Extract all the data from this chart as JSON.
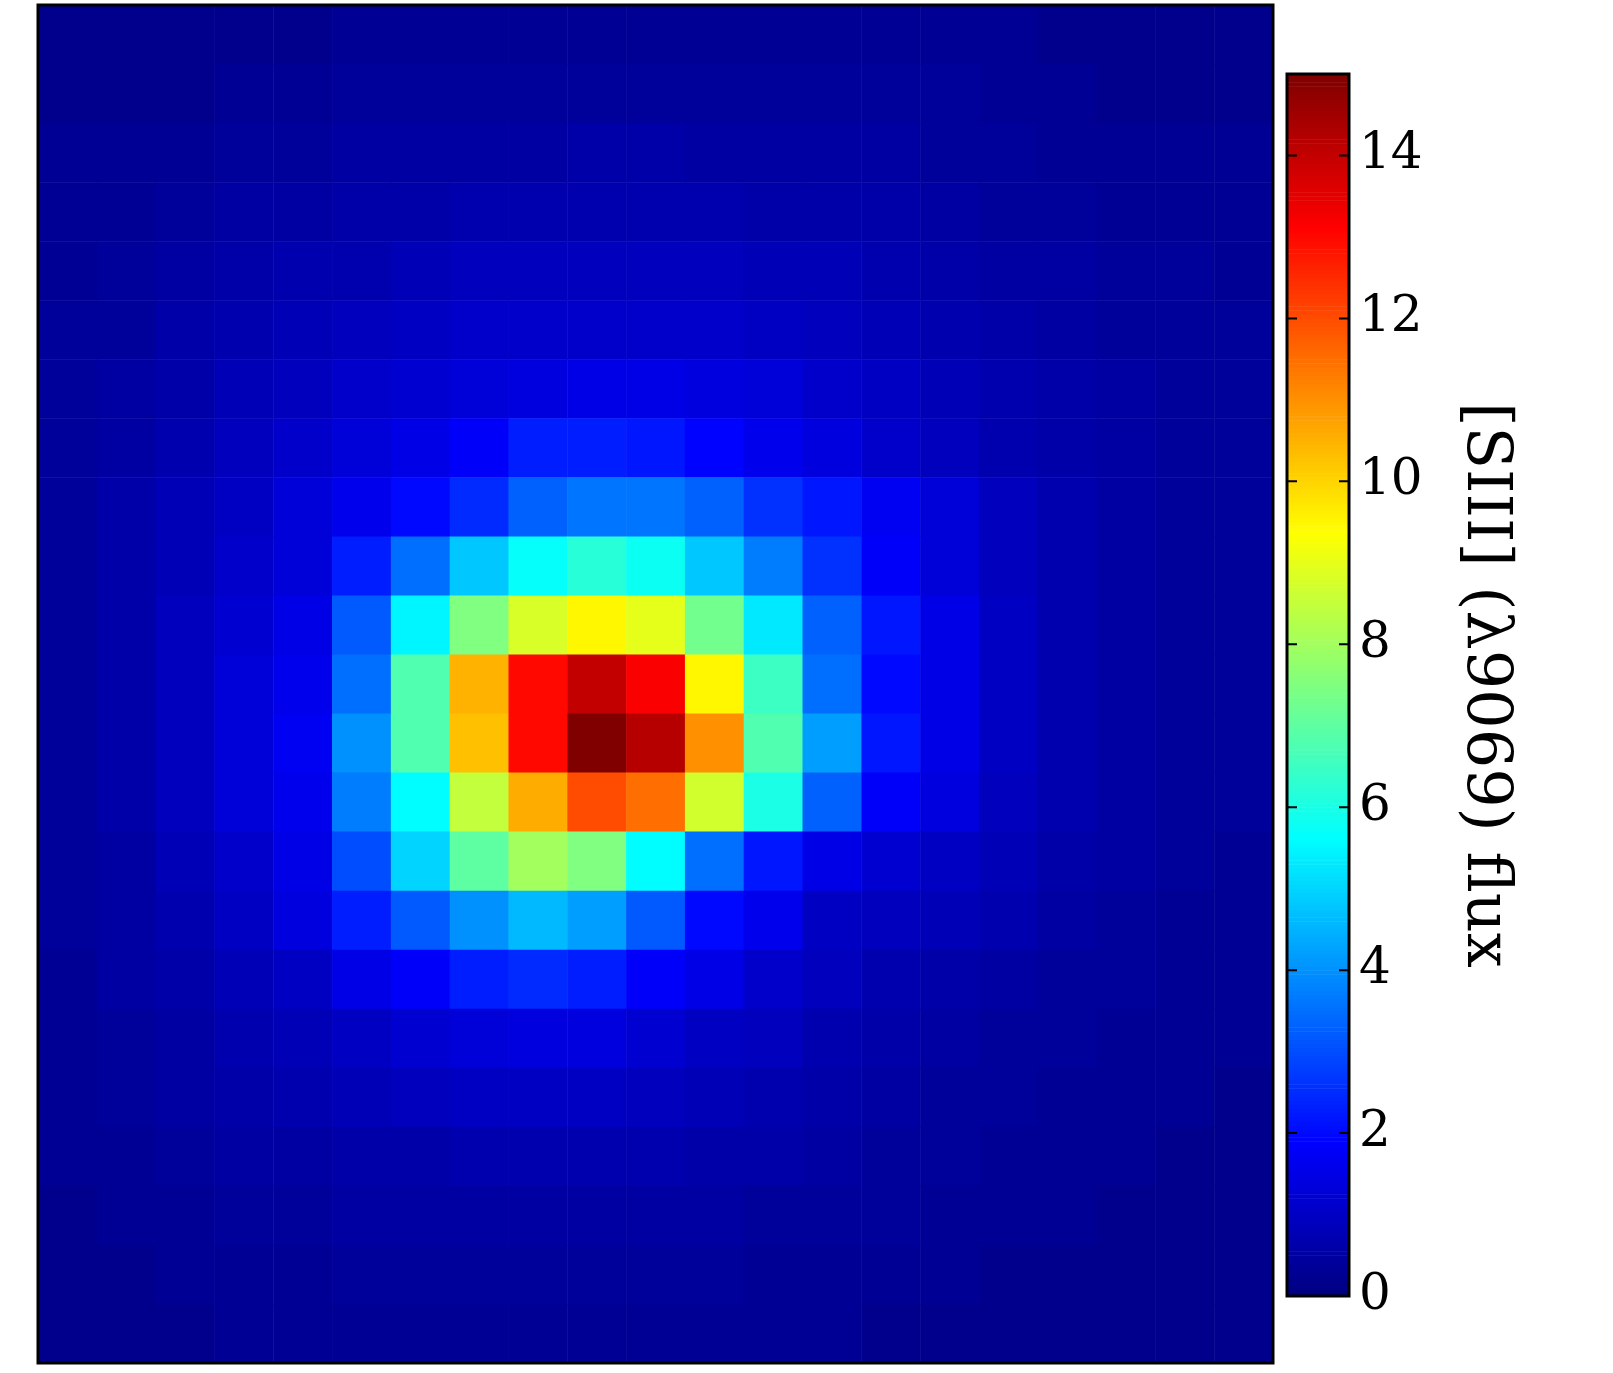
{
  "chart_data": {
    "type": "heatmap",
    "clabel": "[SIII] (λ9069) flux",
    "clim": [
      0,
      15
    ],
    "cticks": [
      0,
      2,
      4,
      6,
      8,
      10,
      12,
      14
    ],
    "tick_labels": false,
    "categories": [
      null,
      null,
      null,
      null,
      null,
      null,
      null,
      null,
      null,
      null,
      null,
      null,
      null,
      null,
      null,
      null,
      null,
      null,
      null,
      null,
      null
    ],
    "y_categories": [
      null,
      null,
      null,
      null,
      null,
      null,
      null,
      null,
      null,
      null,
      null,
      null,
      null,
      null,
      null,
      null,
      null,
      null,
      null,
      null,
      null,
      null,
      null
    ],
    "cells": [
      [
        0.2,
        0.2,
        0.2,
        0.2,
        0.2,
        0.3,
        0.3,
        0.3,
        0.3,
        0.3,
        0.3,
        0.3,
        0.3,
        0.3,
        0.3,
        0.3,
        0.3,
        0.2,
        0.2,
        0.2,
        0.2
      ],
      [
        0.2,
        0.2,
        0.2,
        0.3,
        0.3,
        0.4,
        0.4,
        0.4,
        0.4,
        0.4,
        0.4,
        0.4,
        0.4,
        0.4,
        0.4,
        0.4,
        0.3,
        0.3,
        0.2,
        0.2,
        0.2
      ],
      [
        0.3,
        0.3,
        0.3,
        0.4,
        0.4,
        0.5,
        0.5,
        0.5,
        0.5,
        0.6,
        0.6,
        0.5,
        0.5,
        0.5,
        0.5,
        0.4,
        0.4,
        0.3,
        0.3,
        0.3,
        0.3
      ],
      [
        0.3,
        0.3,
        0.4,
        0.5,
        0.5,
        0.6,
        0.6,
        0.7,
        0.7,
        0.7,
        0.7,
        0.7,
        0.6,
        0.6,
        0.6,
        0.5,
        0.4,
        0.4,
        0.3,
        0.3,
        0.3
      ],
      [
        0.3,
        0.4,
        0.5,
        0.6,
        0.7,
        0.7,
        0.8,
        0.9,
        0.9,
        0.9,
        0.9,
        0.9,
        0.8,
        0.8,
        0.7,
        0.6,
        0.5,
        0.5,
        0.4,
        0.4,
        0.3
      ],
      [
        0.4,
        0.4,
        0.6,
        0.7,
        0.8,
        0.9,
        1.0,
        1.1,
        1.1,
        1.1,
        1.1,
        1.1,
        1.0,
        0.9,
        0.8,
        0.7,
        0.6,
        0.5,
        0.4,
        0.4,
        0.4
      ],
      [
        0.4,
        0.5,
        0.6,
        0.8,
        0.9,
        1.1,
        1.2,
        1.3,
        1.4,
        1.5,
        1.5,
        1.4,
        1.3,
        1.1,
        1.0,
        0.8,
        0.7,
        0.6,
        0.5,
        0.4,
        0.4
      ],
      [
        0.4,
        0.5,
        0.7,
        0.9,
        1.1,
        1.3,
        1.5,
        1.8,
        2.3,
        2.3,
        2.2,
        1.9,
        1.6,
        1.4,
        1.1,
        0.9,
        0.7,
        0.6,
        0.5,
        0.4,
        0.4
      ],
      [
        0.4,
        0.6,
        0.8,
        1.0,
        1.3,
        1.6,
        2.0,
        2.5,
        3.3,
        3.6,
        3.6,
        3.3,
        2.6,
        2.2,
        1.7,
        1.3,
        0.9,
        0.7,
        0.5,
        0.4,
        0.4
      ],
      [
        0.4,
        0.6,
        0.8,
        1.1,
        1.3,
        2.3,
        3.5,
        4.8,
        5.7,
        6.2,
        5.8,
        4.8,
        3.7,
        2.6,
        1.8,
        1.3,
        0.9,
        0.7,
        0.5,
        0.4,
        0.4
      ],
      [
        0.4,
        0.6,
        0.9,
        1.2,
        1.5,
        3.2,
        5.5,
        7.5,
        8.8,
        9.5,
        9.0,
        7.3,
        5.3,
        3.3,
        2.2,
        1.5,
        1.0,
        0.7,
        0.5,
        0.4,
        0.4
      ],
      [
        0.4,
        0.6,
        0.9,
        1.3,
        1.6,
        3.5,
        6.8,
        10.5,
        13.0,
        14.0,
        13.2,
        9.5,
        6.5,
        3.5,
        2.0,
        1.5,
        1.0,
        0.7,
        0.5,
        0.4,
        0.4
      ],
      [
        0.4,
        0.6,
        0.9,
        1.3,
        1.7,
        4.0,
        6.8,
        10.3,
        13.0,
        15.0,
        14.2,
        11.0,
        6.8,
        4.2,
        2.2,
        1.5,
        1.0,
        0.7,
        0.5,
        0.4,
        0.4
      ],
      [
        0.4,
        0.6,
        0.9,
        1.3,
        1.6,
        3.7,
        5.6,
        8.5,
        10.6,
        12.0,
        11.5,
        8.7,
        6.0,
        3.3,
        1.8,
        1.4,
        0.9,
        0.7,
        0.5,
        0.4,
        0.4
      ],
      [
        0.4,
        0.5,
        0.8,
        1.1,
        1.5,
        3.0,
        5.0,
        7.0,
        8.0,
        7.5,
        5.6,
        3.5,
        2.2,
        1.5,
        1.2,
        1.0,
        0.8,
        0.6,
        0.5,
        0.4,
        0.3
      ],
      [
        0.4,
        0.5,
        0.7,
        1.0,
        1.4,
        2.3,
        3.2,
        4.0,
        4.6,
        4.2,
        3.2,
        2.0,
        1.6,
        1.0,
        0.9,
        0.8,
        0.7,
        0.5,
        0.4,
        0.3,
        0.3
      ],
      [
        0.3,
        0.5,
        0.6,
        0.8,
        1.0,
        1.5,
        1.8,
        2.3,
        2.5,
        2.3,
        1.8,
        1.5,
        1.1,
        0.9,
        0.7,
        0.6,
        0.5,
        0.4,
        0.4,
        0.3,
        0.3
      ],
      [
        0.3,
        0.4,
        0.5,
        0.7,
        0.8,
        1.0,
        1.2,
        1.3,
        1.4,
        1.4,
        1.2,
        1.0,
        0.9,
        0.7,
        0.6,
        0.5,
        0.4,
        0.4,
        0.3,
        0.3,
        0.3
      ],
      [
        0.3,
        0.4,
        0.5,
        0.6,
        0.7,
        0.8,
        0.9,
        1.0,
        1.0,
        1.0,
        0.9,
        0.8,
        0.7,
        0.6,
        0.5,
        0.4,
        0.4,
        0.3,
        0.3,
        0.3,
        0.2
      ],
      [
        0.3,
        0.3,
        0.4,
        0.5,
        0.5,
        0.6,
        0.6,
        0.7,
        0.7,
        0.7,
        0.7,
        0.6,
        0.6,
        0.5,
        0.4,
        0.4,
        0.3,
        0.3,
        0.3,
        0.2,
        0.2
      ],
      [
        0.2,
        0.3,
        0.3,
        0.4,
        0.4,
        0.5,
        0.5,
        0.5,
        0.5,
        0.5,
        0.5,
        0.5,
        0.4,
        0.4,
        0.4,
        0.3,
        0.3,
        0.3,
        0.2,
        0.2,
        0.2
      ],
      [
        0.2,
        0.2,
        0.3,
        0.3,
        0.3,
        0.4,
        0.4,
        0.4,
        0.4,
        0.4,
        0.4,
        0.4,
        0.3,
        0.3,
        0.3,
        0.3,
        0.2,
        0.2,
        0.2,
        0.2,
        0.2
      ],
      [
        0.2,
        0.2,
        0.2,
        0.3,
        0.3,
        0.3,
        0.3,
        0.3,
        0.3,
        0.3,
        0.3,
        0.3,
        0.3,
        0.3,
        0.2,
        0.2,
        0.2,
        0.2,
        0.2,
        0.2,
        0.2
      ]
    ]
  }
}
